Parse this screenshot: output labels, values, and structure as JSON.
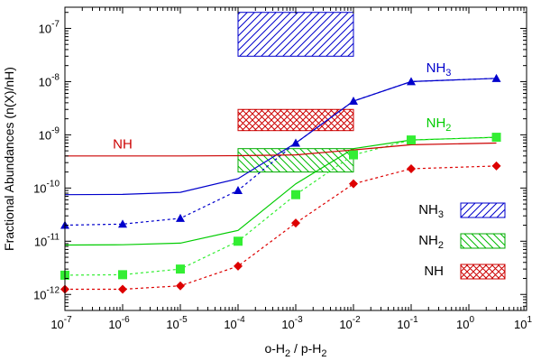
{
  "chart_data": {
    "type": "line",
    "xlabel": "o-H2 / p-H2",
    "ylabel": "Fractional Abundances (n(X)/nH)",
    "x_scale": "log",
    "y_scale": "log",
    "xlim": [
      1e-07,
      10
    ],
    "ylim": [
      5e-13,
      2.5e-07
    ],
    "x_ticks": [
      {
        "value": 1e-07,
        "base": "10",
        "exp": "-7"
      },
      {
        "value": 1e-06,
        "base": "10",
        "exp": "-6"
      },
      {
        "value": 1e-05,
        "base": "10",
        "exp": "-5"
      },
      {
        "value": 0.0001,
        "base": "10",
        "exp": "-4"
      },
      {
        "value": 0.001,
        "base": "10",
        "exp": "-3"
      },
      {
        "value": 0.01,
        "base": "10",
        "exp": "-2"
      },
      {
        "value": 0.1,
        "base": "10",
        "exp": "-1"
      },
      {
        "value": 1,
        "base": "10",
        "exp": "0"
      },
      {
        "value": 10,
        "base": "10",
        "exp": "1"
      }
    ],
    "y_ticks": [
      {
        "value": 1e-12,
        "base": "10",
        "exp": "-12"
      },
      {
        "value": 1e-11,
        "base": "10",
        "exp": "-11"
      },
      {
        "value": 1e-10,
        "base": "10",
        "exp": "-10"
      },
      {
        "value": 1e-09,
        "base": "10",
        "exp": "-9"
      },
      {
        "value": 1e-08,
        "base": "10",
        "exp": "-8"
      },
      {
        "value": 1e-07,
        "base": "10",
        "exp": "-7"
      }
    ],
    "series": [
      {
        "name": "NH3 solid",
        "species": "NH3",
        "color": "#0000cc",
        "dashed": false,
        "marker": "none",
        "x": [
          1e-07,
          1e-06,
          1e-05,
          0.0001,
          0.001,
          0.01,
          0.1,
          3
        ],
        "y": [
          7.5e-11,
          7.6e-11,
          8.3e-11,
          1.5e-10,
          7e-10,
          4.3e-09,
          1e-08,
          1.15e-08
        ]
      },
      {
        "name": "NH3 markers",
        "species": "NH3",
        "color": "#0000cc",
        "dashed": true,
        "marker": "triangle",
        "x": [
          1e-07,
          1e-06,
          1e-05,
          0.0001,
          0.001,
          0.01,
          0.1,
          3
        ],
        "y": [
          2e-11,
          2.1e-11,
          2.7e-11,
          9e-11,
          7e-10,
          4.3e-09,
          1e-08,
          1.15e-08
        ]
      },
      {
        "name": "NH2 solid",
        "species": "NH2",
        "color": "#00cc00",
        "dashed": false,
        "marker": "none",
        "x": [
          1e-07,
          1e-06,
          1e-05,
          0.0001,
          0.001,
          0.01,
          0.1,
          3
        ],
        "y": [
          8.5e-12,
          8.6e-12,
          9.2e-12,
          1.6e-11,
          1.2e-10,
          5.5e-10,
          8e-10,
          9e-10
        ]
      },
      {
        "name": "NH2 markers",
        "species": "NH2",
        "color": "#33ee33",
        "dashed": true,
        "marker": "square",
        "x": [
          1e-07,
          1e-06,
          1e-05,
          0.0001,
          0.001,
          0.01,
          0.1,
          3
        ],
        "y": [
          2.3e-12,
          2.35e-12,
          3e-12,
          1e-11,
          7.5e-11,
          4.2e-10,
          8e-10,
          9e-10
        ]
      },
      {
        "name": "NH solid",
        "species": "NH",
        "color": "#cc0000",
        "dashed": false,
        "marker": "none",
        "x": [
          1e-07,
          1e-06,
          1e-05,
          0.0001,
          0.001,
          0.01,
          0.1,
          3
        ],
        "y": [
          4e-10,
          4e-10,
          4e-10,
          4.05e-10,
          4.2e-10,
          5.2e-10,
          6.5e-10,
          7e-10
        ]
      },
      {
        "name": "NH markers",
        "species": "NH",
        "color": "#dd0000",
        "dashed": true,
        "marker": "diamond",
        "x": [
          1e-07,
          1e-06,
          1e-05,
          0.0001,
          0.001,
          0.01,
          0.1,
          3
        ],
        "y": [
          1.25e-12,
          1.25e-12,
          1.45e-12,
          3.4e-12,
          2.2e-11,
          1.2e-10,
          2.3e-10,
          2.6e-10
        ]
      }
    ],
    "observed_ranges": [
      {
        "species": "NH3",
        "x_range": [
          0.0001,
          0.01
        ],
        "y_range": [
          3e-08,
          2e-07
        ],
        "pattern": "hatch",
        "color": "#0000cc"
      },
      {
        "species": "NH",
        "x_range": [
          0.0001,
          0.01
        ],
        "y_range": [
          1.2e-09,
          3e-09
        ],
        "pattern": "crosshatch",
        "color": "#cc0000"
      },
      {
        "species": "NH2",
        "x_range": [
          0.0001,
          0.01
        ],
        "y_range": [
          2e-10,
          5.5e-10
        ],
        "pattern": "hatch-reverse",
        "color": "#00aa00"
      }
    ],
    "curve_labels": [
      {
        "base": "NH",
        "sub": "3",
        "color": "#0000cc",
        "x": 0.3,
        "y": 1.5e-08
      },
      {
        "base": "NH",
        "sub": "2",
        "color": "#00cc00",
        "x": 0.3,
        "y": 1.4e-09
      },
      {
        "base": "NH",
        "sub": "",
        "color": "#cc0000",
        "x": 1e-06,
        "y": 5.5e-10
      }
    ],
    "legend": {
      "position": "bottom-right",
      "entries": [
        {
          "base": "NH",
          "sub": "3",
          "pattern": "hatch",
          "color": "#0000cc"
        },
        {
          "base": "NH",
          "sub": "2",
          "pattern": "hatch-reverse",
          "color": "#00aa00"
        },
        {
          "base": "NH",
          "sub": "",
          "pattern": "crosshatch",
          "color": "#cc0000"
        }
      ]
    },
    "xlabel_parts": {
      "a": "o-H",
      "a_sub": "2",
      "mid": " / p-H",
      "b_sub": "2"
    }
  }
}
